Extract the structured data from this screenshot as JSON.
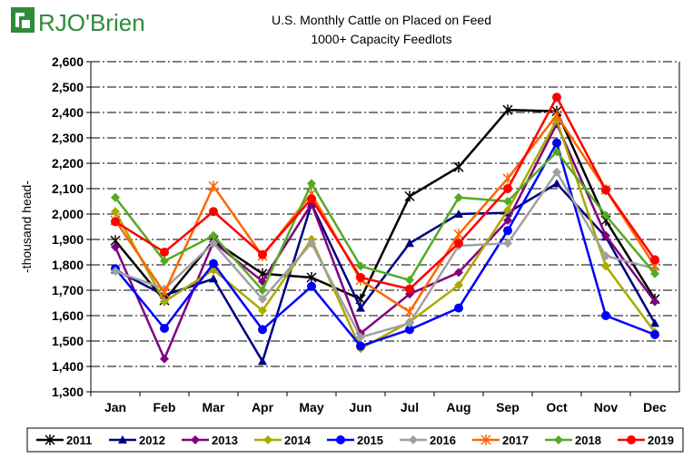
{
  "logo": {
    "text": "RJO'Brien",
    "color": "#2e8b3a"
  },
  "chart_data": {
    "type": "line",
    "title": "U.S. Monthly Cattle on Placed on Feed",
    "subtitle": "1000+ Capacity Feedlots",
    "xlabel": "",
    "ylabel": "-thousand head-",
    "ylim": [
      1300,
      2600
    ],
    "ytick_step": 100,
    "grid": true,
    "legend_placement": "bottom",
    "categories": [
      "Jan",
      "Feb",
      "Mar",
      "Apr",
      "May",
      "Jun",
      "Jul",
      "Aug",
      "Sep",
      "Oct",
      "Nov",
      "Dec"
    ],
    "series": [
      {
        "name": "2011",
        "color": "#000000",
        "marker": "star",
        "values": [
          1895,
          1660,
          1895,
          1765,
          1750,
          1665,
          2070,
          2185,
          2410,
          2405,
          1975,
          1665
        ]
      },
      {
        "name": "2012",
        "color": "#000080",
        "marker": "triangle",
        "values": [
          1780,
          1680,
          1745,
          1420,
          2040,
          1630,
          1885,
          2000,
          2005,
          2120,
          1910,
          1570
        ]
      },
      {
        "name": "2013",
        "color": "#800080",
        "marker": "diamond",
        "values": [
          1870,
          1430,
          1890,
          1735,
          2040,
          1530,
          1685,
          1770,
          1975,
          2355,
          1915,
          1655
        ]
      },
      {
        "name": "2014",
        "color": "#aaaa00",
        "marker": "diamond",
        "values": [
          2010,
          1655,
          1780,
          1620,
          1900,
          1470,
          1575,
          1720,
          2015,
          2370,
          1795,
          1535
        ]
      },
      {
        "name": "2015",
        "color": "#0000ff",
        "marker": "circle",
        "values": [
          1785,
          1550,
          1805,
          1545,
          1715,
          1480,
          1545,
          1630,
          1935,
          2280,
          1600,
          1525
        ]
      },
      {
        "name": "2016",
        "color": "#a0a0a0",
        "marker": "diamond",
        "values": [
          1775,
          1705,
          1885,
          1665,
          1885,
          1515,
          1570,
          1875,
          1885,
          2165,
          1835,
          1785
        ]
      },
      {
        "name": "2017",
        "color": "#ff6600",
        "marker": "star",
        "values": [
          1975,
          1690,
          2110,
          1835,
          2080,
          1740,
          1615,
          1920,
          2140,
          2390,
          2095,
          1795
        ]
      },
      {
        "name": "2018",
        "color": "#55aa22",
        "marker": "diamond",
        "values": [
          2065,
          1815,
          1915,
          1700,
          2120,
          1795,
          1740,
          2065,
          2050,
          2245,
          1995,
          1765
        ]
      },
      {
        "name": "2019",
        "color": "#ff0000",
        "marker": "circle",
        "values": [
          1970,
          1850,
          2010,
          1840,
          2060,
          1750,
          1705,
          1885,
          2100,
          2460,
          2095,
          1820
        ]
      }
    ]
  }
}
